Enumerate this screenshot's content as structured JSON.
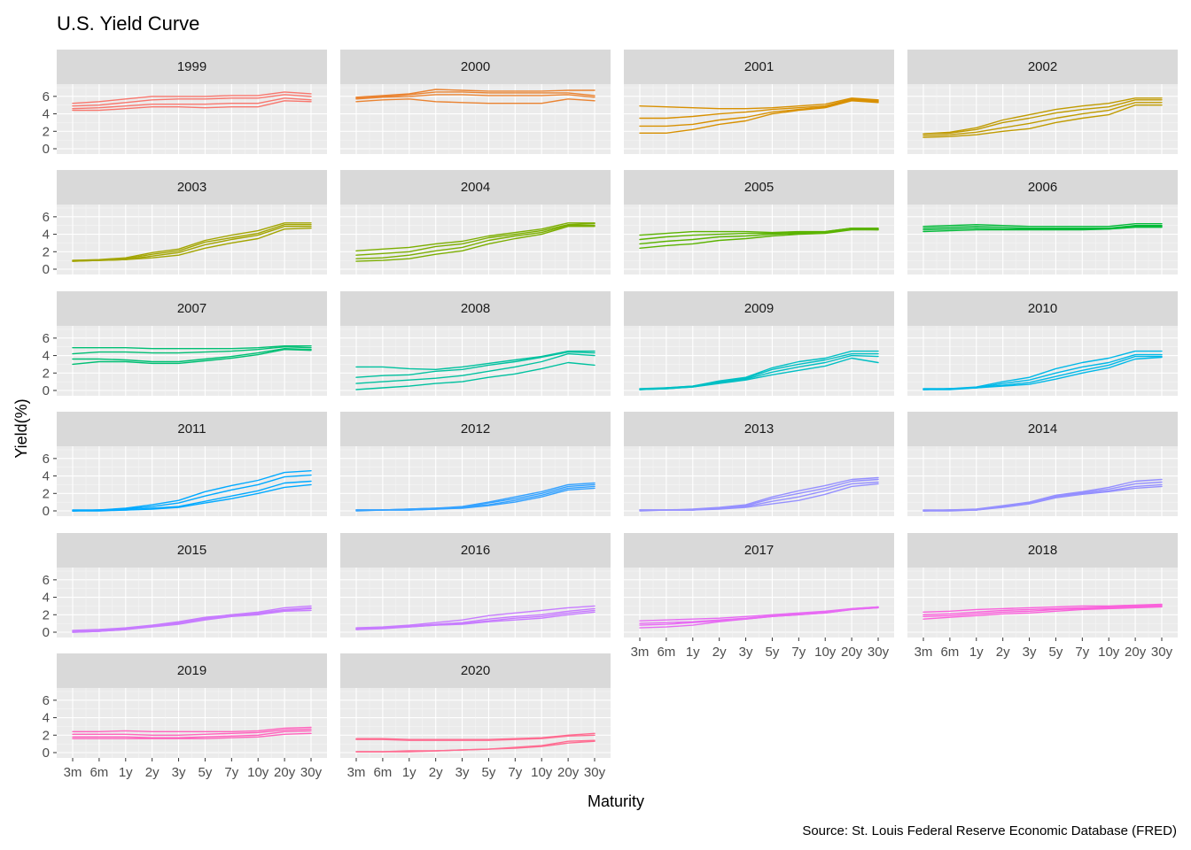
{
  "chart_data": {
    "type": "line",
    "title": "U.S. Yield Curve",
    "xlabel": "Maturity",
    "ylabel": "Yield(%)",
    "caption": "Source: St. Louis Federal Reserve Economic Database (FRED)",
    "x": [
      "3m",
      "6m",
      "1y",
      "2y",
      "3y",
      "5y",
      "7y",
      "10y",
      "20y",
      "30y"
    ],
    "y_ticks": [
      "0",
      "2",
      "4",
      "6"
    ],
    "ylim": [
      0,
      7
    ],
    "grid": true,
    "panels": [
      {
        "label": "1999",
        "color": "#F8766D",
        "curves": [
          [
            4.4,
            4.4,
            4.6,
            4.8,
            4.8,
            4.7,
            4.8,
            4.8,
            5.5,
            5.4
          ],
          [
            4.6,
            4.7,
            4.9,
            5.1,
            5.1,
            5.1,
            5.2,
            5.2,
            5.8,
            5.6
          ],
          [
            4.9,
            5.0,
            5.3,
            5.6,
            5.7,
            5.7,
            5.8,
            5.8,
            6.2,
            6.0
          ],
          [
            5.2,
            5.4,
            5.7,
            6.0,
            6.0,
            6.0,
            6.1,
            6.1,
            6.5,
            6.3
          ]
        ]
      },
      {
        "label": "2000",
        "color": "#EA8331",
        "curves": [
          [
            5.4,
            5.6,
            5.7,
            5.4,
            5.3,
            5.2,
            5.2,
            5.2,
            5.7,
            5.5
          ],
          [
            5.7,
            5.9,
            6.0,
            6.2,
            6.2,
            6.1,
            6.1,
            6.1,
            6.2,
            5.9
          ],
          [
            5.8,
            6.0,
            6.2,
            6.5,
            6.5,
            6.4,
            6.4,
            6.4,
            6.4,
            6.1
          ],
          [
            5.9,
            6.1,
            6.3,
            6.8,
            6.7,
            6.6,
            6.6,
            6.6,
            6.7,
            6.7
          ]
        ]
      },
      {
        "label": "2001",
        "color": "#D89000",
        "curves": [
          [
            1.8,
            1.8,
            2.2,
            2.8,
            3.2,
            4.0,
            4.4,
            4.7,
            5.5,
            5.3
          ],
          [
            2.6,
            2.6,
            2.8,
            3.3,
            3.6,
            4.2,
            4.5,
            4.8,
            5.6,
            5.4
          ],
          [
            3.5,
            3.5,
            3.7,
            4.0,
            4.2,
            4.5,
            4.7,
            4.9,
            5.7,
            5.5
          ],
          [
            4.9,
            4.8,
            4.7,
            4.6,
            4.6,
            4.7,
            4.9,
            5.1,
            5.8,
            5.6
          ]
        ]
      },
      {
        "label": "2002",
        "color": "#C09B00",
        "curves": [
          [
            1.3,
            1.4,
            1.6,
            2.0,
            2.3,
            3.0,
            3.5,
            3.9,
            5.0,
            5.0
          ],
          [
            1.5,
            1.6,
            1.9,
            2.4,
            2.9,
            3.5,
            4.0,
            4.4,
            5.3,
            5.3
          ],
          [
            1.7,
            1.8,
            2.2,
            3.0,
            3.5,
            4.1,
            4.5,
            4.8,
            5.6,
            5.6
          ],
          [
            1.7,
            1.9,
            2.4,
            3.3,
            3.9,
            4.5,
            4.9,
            5.2,
            5.8,
            5.8
          ]
        ]
      },
      {
        "label": "2003",
        "color": "#A3A500",
        "curves": [
          [
            0.9,
            1.0,
            1.1,
            1.3,
            1.6,
            2.4,
            3.0,
            3.5,
            4.6,
            4.7
          ],
          [
            0.9,
            1.0,
            1.1,
            1.5,
            1.9,
            2.8,
            3.4,
            3.9,
            4.9,
            4.9
          ],
          [
            1.0,
            1.0,
            1.2,
            1.7,
            2.1,
            3.1,
            3.6,
            4.1,
            5.1,
            5.1
          ],
          [
            1.0,
            1.1,
            1.3,
            1.9,
            2.3,
            3.3,
            3.9,
            4.4,
            5.3,
            5.3
          ]
        ]
      },
      {
        "label": "2004",
        "color": "#7CAE00",
        "curves": [
          [
            0.9,
            1.0,
            1.2,
            1.7,
            2.1,
            2.9,
            3.5,
            4.0,
            4.9,
            4.9
          ],
          [
            1.2,
            1.3,
            1.6,
            2.1,
            2.5,
            3.3,
            3.8,
            4.2,
            5.0,
            5.0
          ],
          [
            1.6,
            1.8,
            2.0,
            2.6,
            2.9,
            3.6,
            4.0,
            4.4,
            5.1,
            5.2
          ],
          [
            2.1,
            2.3,
            2.5,
            2.9,
            3.2,
            3.8,
            4.2,
            4.6,
            5.3,
            5.3
          ]
        ]
      },
      {
        "label": "2005",
        "color": "#5BB300",
        "curves": [
          [
            2.4,
            2.7,
            2.9,
            3.3,
            3.5,
            3.8,
            4.0,
            4.1,
            4.5,
            4.5
          ],
          [
            2.9,
            3.2,
            3.4,
            3.7,
            3.8,
            4.0,
            4.1,
            4.2,
            4.6,
            4.5
          ],
          [
            3.4,
            3.7,
            3.9,
            4.0,
            4.1,
            4.1,
            4.2,
            4.3,
            4.7,
            4.6
          ],
          [
            3.9,
            4.1,
            4.3,
            4.3,
            4.3,
            4.2,
            4.3,
            4.3,
            4.7,
            4.7
          ]
        ]
      },
      {
        "label": "2006",
        "color": "#00BA38",
        "curves": [
          [
            4.3,
            4.4,
            4.5,
            4.5,
            4.5,
            4.5,
            4.5,
            4.6,
            4.8,
            4.8
          ],
          [
            4.5,
            4.6,
            4.7,
            4.6,
            4.6,
            4.6,
            4.6,
            4.6,
            4.9,
            4.9
          ],
          [
            4.7,
            4.8,
            4.9,
            4.8,
            4.7,
            4.7,
            4.7,
            4.7,
            5.0,
            5.0
          ],
          [
            4.9,
            5.0,
            5.1,
            5.0,
            4.9,
            4.9,
            4.9,
            4.9,
            5.2,
            5.2
          ]
        ]
      },
      {
        "label": "2007",
        "color": "#00BF74",
        "curves": [
          [
            3.0,
            3.3,
            3.3,
            3.1,
            3.1,
            3.4,
            3.7,
            4.1,
            4.7,
            4.6
          ],
          [
            3.6,
            3.6,
            3.5,
            3.3,
            3.3,
            3.6,
            3.9,
            4.3,
            4.8,
            4.7
          ],
          [
            4.2,
            4.4,
            4.4,
            4.3,
            4.3,
            4.4,
            4.5,
            4.7,
            5.0,
            4.9
          ],
          [
            4.9,
            4.9,
            4.9,
            4.8,
            4.8,
            4.8,
            4.8,
            4.9,
            5.1,
            5.1
          ]
        ]
      },
      {
        "label": "2008",
        "color": "#00C19F",
        "curves": [
          [
            0.1,
            0.3,
            0.5,
            0.8,
            1.0,
            1.5,
            1.9,
            2.5,
            3.2,
            2.9
          ],
          [
            0.8,
            1.0,
            1.2,
            1.4,
            1.7,
            2.2,
            2.7,
            3.3,
            4.2,
            4.0
          ],
          [
            1.5,
            1.7,
            1.8,
            2.2,
            2.4,
            2.9,
            3.3,
            3.8,
            4.4,
            4.3
          ],
          [
            2.7,
            2.7,
            2.5,
            2.4,
            2.7,
            3.1,
            3.5,
            3.9,
            4.5,
            4.5
          ]
        ]
      },
      {
        "label": "2009",
        "color": "#00BFC4",
        "curves": [
          [
            0.1,
            0.2,
            0.4,
            0.8,
            1.2,
            1.8,
            2.3,
            2.8,
            3.7,
            3.2
          ],
          [
            0.1,
            0.2,
            0.4,
            0.9,
            1.3,
            2.1,
            2.7,
            3.2,
            4.0,
            3.9
          ],
          [
            0.1,
            0.3,
            0.5,
            1.0,
            1.4,
            2.4,
            3.0,
            3.5,
            4.2,
            4.2
          ],
          [
            0.2,
            0.3,
            0.5,
            1.1,
            1.5,
            2.6,
            3.3,
            3.7,
            4.5,
            4.5
          ]
        ]
      },
      {
        "label": "2010",
        "color": "#00B8E7",
        "curves": [
          [
            0.1,
            0.1,
            0.3,
            0.5,
            0.7,
            1.3,
            2.0,
            2.6,
            3.6,
            3.8
          ],
          [
            0.1,
            0.2,
            0.3,
            0.6,
            0.9,
            1.6,
            2.3,
            2.9,
            3.9,
            3.9
          ],
          [
            0.1,
            0.2,
            0.3,
            0.8,
            1.2,
            2.0,
            2.7,
            3.2,
            4.1,
            4.1
          ],
          [
            0.2,
            0.2,
            0.4,
            1.0,
            1.5,
            2.5,
            3.2,
            3.7,
            4.5,
            4.5
          ]
        ]
      },
      {
        "label": "2011",
        "color": "#00A9FF",
        "curves": [
          [
            0.0,
            0.0,
            0.1,
            0.2,
            0.4,
            0.9,
            1.4,
            2.0,
            2.7,
            3.0
          ],
          [
            0.0,
            0.1,
            0.1,
            0.3,
            0.5,
            1.1,
            1.7,
            2.3,
            3.2,
            3.4
          ],
          [
            0.0,
            0.1,
            0.2,
            0.5,
            0.9,
            1.7,
            2.4,
            3.0,
            3.9,
            4.1
          ],
          [
            0.1,
            0.1,
            0.3,
            0.7,
            1.2,
            2.2,
            2.9,
            3.5,
            4.4,
            4.6
          ]
        ]
      },
      {
        "label": "2012",
        "color": "#35A2FF",
        "curves": [
          [
            0.0,
            0.1,
            0.1,
            0.2,
            0.3,
            0.6,
            1.0,
            1.6,
            2.4,
            2.6
          ],
          [
            0.1,
            0.1,
            0.1,
            0.2,
            0.4,
            0.7,
            1.2,
            1.8,
            2.6,
            2.8
          ],
          [
            0.1,
            0.1,
            0.2,
            0.3,
            0.4,
            0.9,
            1.4,
            2.0,
            2.8,
            3.0
          ],
          [
            0.1,
            0.1,
            0.2,
            0.3,
            0.5,
            1.0,
            1.6,
            2.2,
            3.0,
            3.2
          ]
        ]
      },
      {
        "label": "2013",
        "color": "#9590FF",
        "curves": [
          [
            0.0,
            0.1,
            0.1,
            0.2,
            0.4,
            0.8,
            1.2,
            1.9,
            2.8,
            3.1
          ],
          [
            0.1,
            0.1,
            0.1,
            0.3,
            0.5,
            1.1,
            1.6,
            2.3,
            3.1,
            3.3
          ],
          [
            0.1,
            0.1,
            0.1,
            0.3,
            0.6,
            1.4,
            2.0,
            2.6,
            3.4,
            3.6
          ],
          [
            0.1,
            0.1,
            0.2,
            0.4,
            0.7,
            1.6,
            2.3,
            2.9,
            3.6,
            3.8
          ]
        ]
      },
      {
        "label": "2014",
        "color": "#9590FF",
        "curves": [
          [
            0.0,
            0.0,
            0.1,
            0.4,
            0.8,
            1.5,
            1.9,
            2.2,
            2.6,
            2.8
          ],
          [
            0.0,
            0.1,
            0.1,
            0.5,
            0.8,
            1.6,
            2.0,
            2.3,
            2.8,
            3.0
          ],
          [
            0.0,
            0.1,
            0.1,
            0.5,
            0.9,
            1.7,
            2.1,
            2.5,
            3.1,
            3.3
          ],
          [
            0.1,
            0.1,
            0.2,
            0.6,
            1.0,
            1.8,
            2.2,
            2.7,
            3.4,
            3.6
          ]
        ]
      },
      {
        "label": "2015",
        "color": "#C77CFF",
        "curves": [
          [
            0.0,
            0.1,
            0.3,
            0.6,
            0.9,
            1.4,
            1.8,
            2.0,
            2.4,
            2.5
          ],
          [
            0.0,
            0.1,
            0.3,
            0.7,
            1.0,
            1.5,
            1.9,
            2.1,
            2.5,
            2.7
          ],
          [
            0.1,
            0.2,
            0.4,
            0.7,
            1.1,
            1.6,
            2.0,
            2.2,
            2.6,
            2.8
          ],
          [
            0.2,
            0.3,
            0.5,
            0.8,
            1.2,
            1.7,
            2.0,
            2.3,
            2.8,
            3.0
          ]
        ]
      },
      {
        "label": "2016",
        "color": "#C77CFF",
        "curves": [
          [
            0.3,
            0.4,
            0.6,
            0.8,
            0.9,
            1.2,
            1.4,
            1.6,
            2.0,
            2.3
          ],
          [
            0.3,
            0.5,
            0.6,
            0.8,
            1.0,
            1.3,
            1.6,
            1.8,
            2.2,
            2.5
          ],
          [
            0.4,
            0.5,
            0.7,
            0.9,
            1.1,
            1.5,
            1.8,
            2.0,
            2.4,
            2.7
          ],
          [
            0.5,
            0.6,
            0.8,
            1.1,
            1.4,
            1.9,
            2.2,
            2.5,
            2.8,
            3.0
          ]
        ]
      },
      {
        "label": "2017",
        "color": "#E76BF3",
        "curves": [
          [
            0.5,
            0.6,
            0.8,
            1.2,
            1.5,
            1.8,
            2.0,
            2.2,
            2.6,
            2.8
          ],
          [
            0.8,
            0.9,
            1.1,
            1.3,
            1.5,
            1.8,
            2.0,
            2.2,
            2.6,
            2.8
          ],
          [
            1.0,
            1.1,
            1.2,
            1.4,
            1.6,
            1.9,
            2.1,
            2.3,
            2.7,
            2.9
          ],
          [
            1.3,
            1.4,
            1.5,
            1.6,
            1.8,
            2.0,
            2.2,
            2.4,
            2.7,
            2.9
          ]
        ]
      },
      {
        "label": "2018",
        "color": "#FA62DB",
        "curves": [
          [
            1.5,
            1.7,
            1.9,
            2.1,
            2.2,
            2.4,
            2.6,
            2.7,
            2.8,
            2.9
          ],
          [
            1.8,
            1.9,
            2.1,
            2.3,
            2.4,
            2.6,
            2.7,
            2.8,
            2.9,
            3.0
          ],
          [
            2.0,
            2.1,
            2.3,
            2.5,
            2.6,
            2.7,
            2.8,
            2.9,
            3.0,
            3.1
          ],
          [
            2.3,
            2.4,
            2.6,
            2.7,
            2.8,
            2.9,
            3.0,
            3.0,
            3.1,
            3.2
          ]
        ]
      },
      {
        "label": "2019",
        "color": "#FF62BC",
        "curves": [
          [
            1.6,
            1.6,
            1.6,
            1.6,
            1.6,
            1.6,
            1.7,
            1.8,
            2.1,
            2.2
          ],
          [
            1.8,
            1.8,
            1.8,
            1.7,
            1.7,
            1.8,
            1.9,
            2.0,
            2.4,
            2.5
          ],
          [
            2.1,
            2.1,
            2.1,
            2.0,
            2.0,
            2.1,
            2.2,
            2.3,
            2.6,
            2.7
          ],
          [
            2.4,
            2.4,
            2.5,
            2.4,
            2.4,
            2.4,
            2.4,
            2.5,
            2.8,
            2.9
          ]
        ]
      },
      {
        "label": "2020",
        "color": "#FF6C91",
        "curves": [
          [
            0.1,
            0.1,
            0.1,
            0.2,
            0.3,
            0.4,
            0.5,
            0.7,
            1.1,
            1.3
          ],
          [
            0.1,
            0.1,
            0.2,
            0.2,
            0.3,
            0.4,
            0.6,
            0.8,
            1.3,
            1.4
          ],
          [
            1.5,
            1.5,
            1.4,
            1.4,
            1.4,
            1.4,
            1.5,
            1.6,
            1.9,
            2.0
          ],
          [
            1.6,
            1.6,
            1.5,
            1.5,
            1.5,
            1.5,
            1.6,
            1.7,
            2.0,
            2.2
          ]
        ]
      }
    ]
  }
}
